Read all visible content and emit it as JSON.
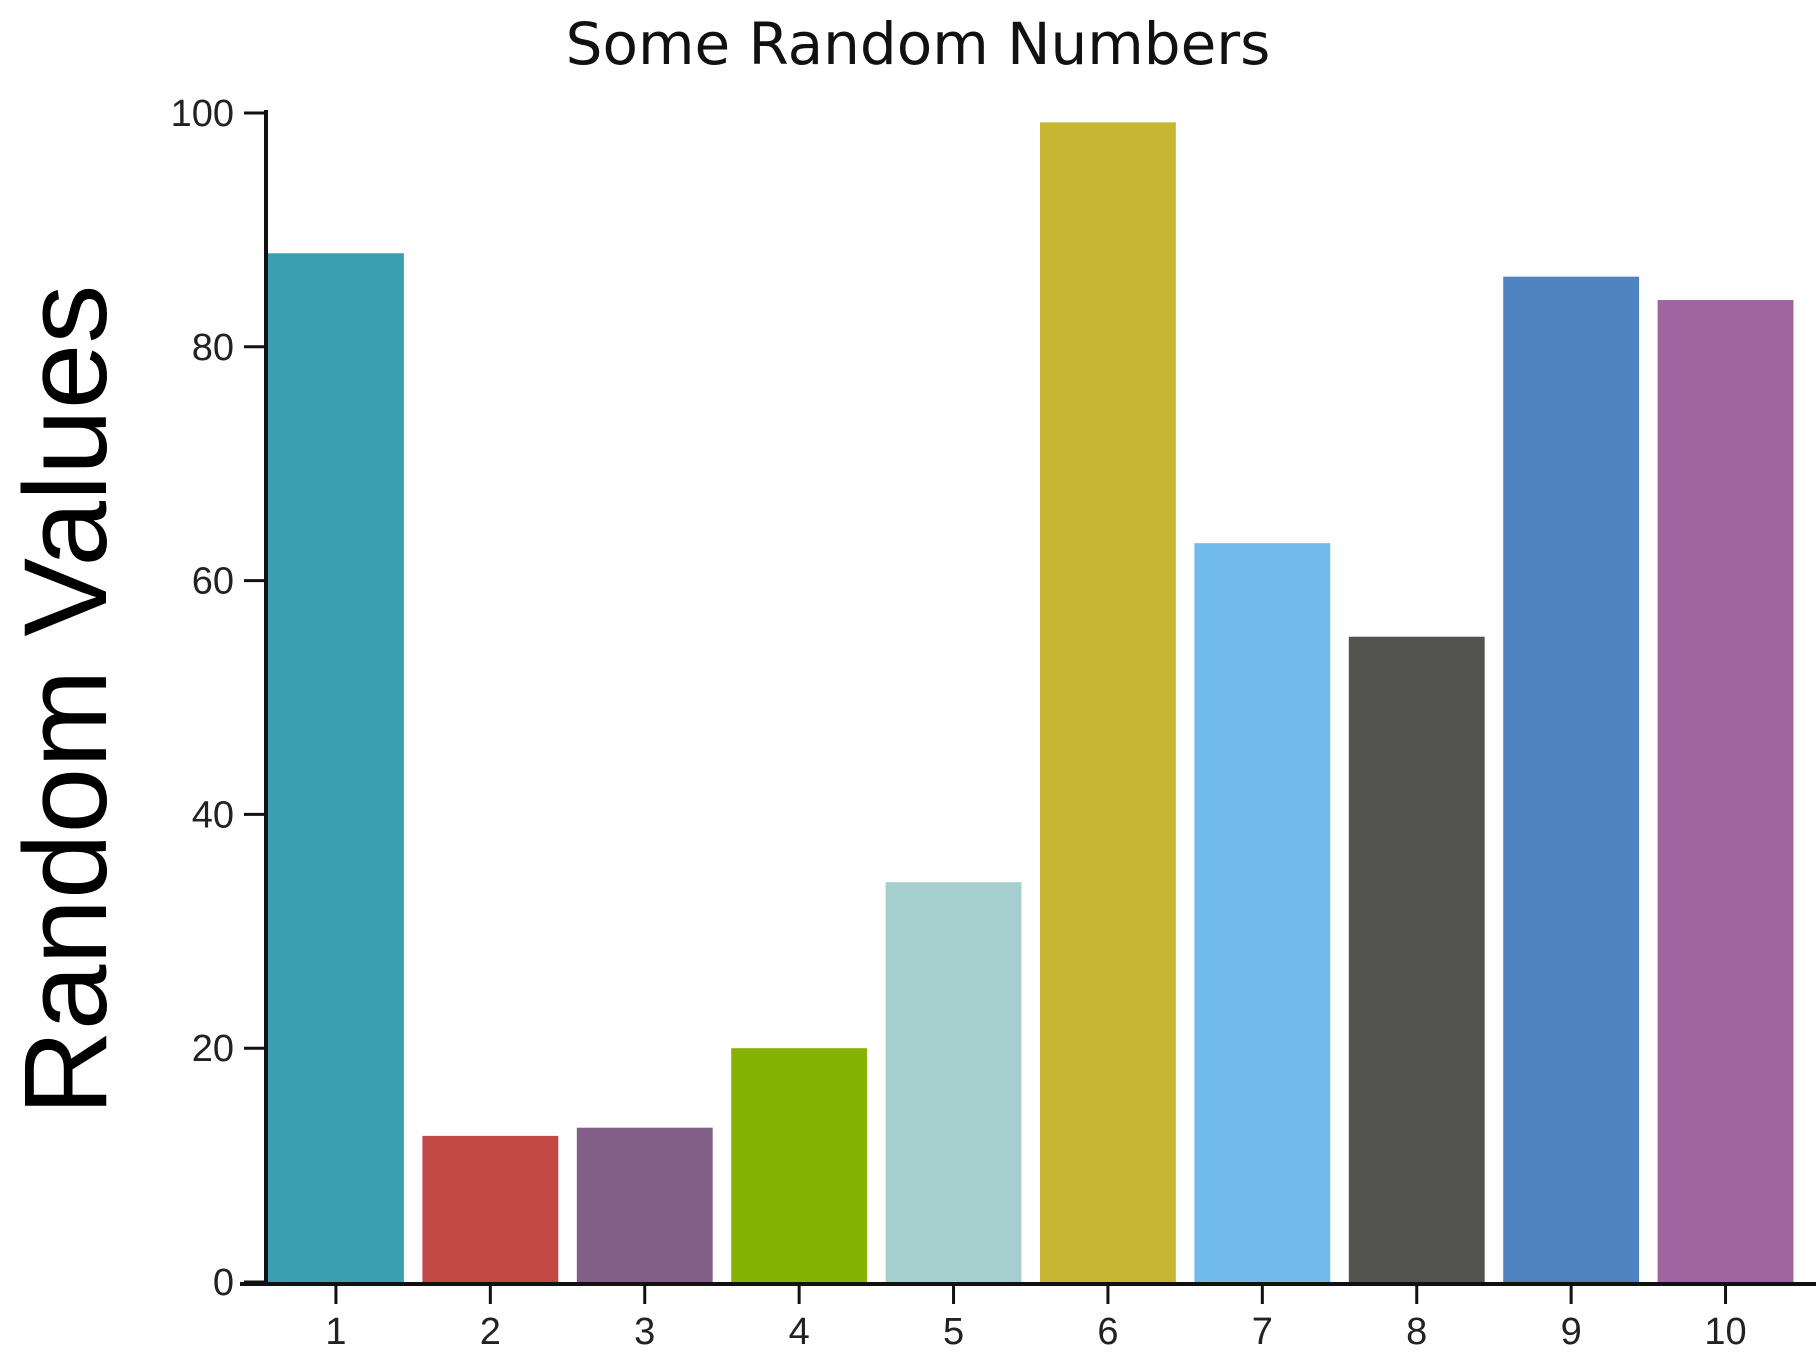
{
  "chart_data": {
    "type": "bar",
    "title": "Some Random Numbers",
    "xlabel": "",
    "ylabel": "Random Values",
    "categories": [
      "1",
      "2",
      "3",
      "4",
      "5",
      "6",
      "7",
      "8",
      "9",
      "10"
    ],
    "values": [
      88,
      12.5,
      13.2,
      20,
      34.2,
      99.2,
      63.2,
      55.2,
      86,
      84
    ],
    "colors": [
      "#3a9fb0",
      "#c24846",
      "#815f86",
      "#86b302",
      "#a5cfcf",
      "#c7b631",
      "#71bbeb",
      "#52524e",
      "#4f83bf",
      "#9e65a0"
    ],
    "ylim": [
      0,
      100
    ],
    "yticks": [
      0,
      20,
      40,
      60,
      80,
      100
    ],
    "ytick_labels": [
      "0",
      "20",
      "40",
      "60",
      "80",
      "100"
    ],
    "grid": false,
    "legend": "none"
  }
}
